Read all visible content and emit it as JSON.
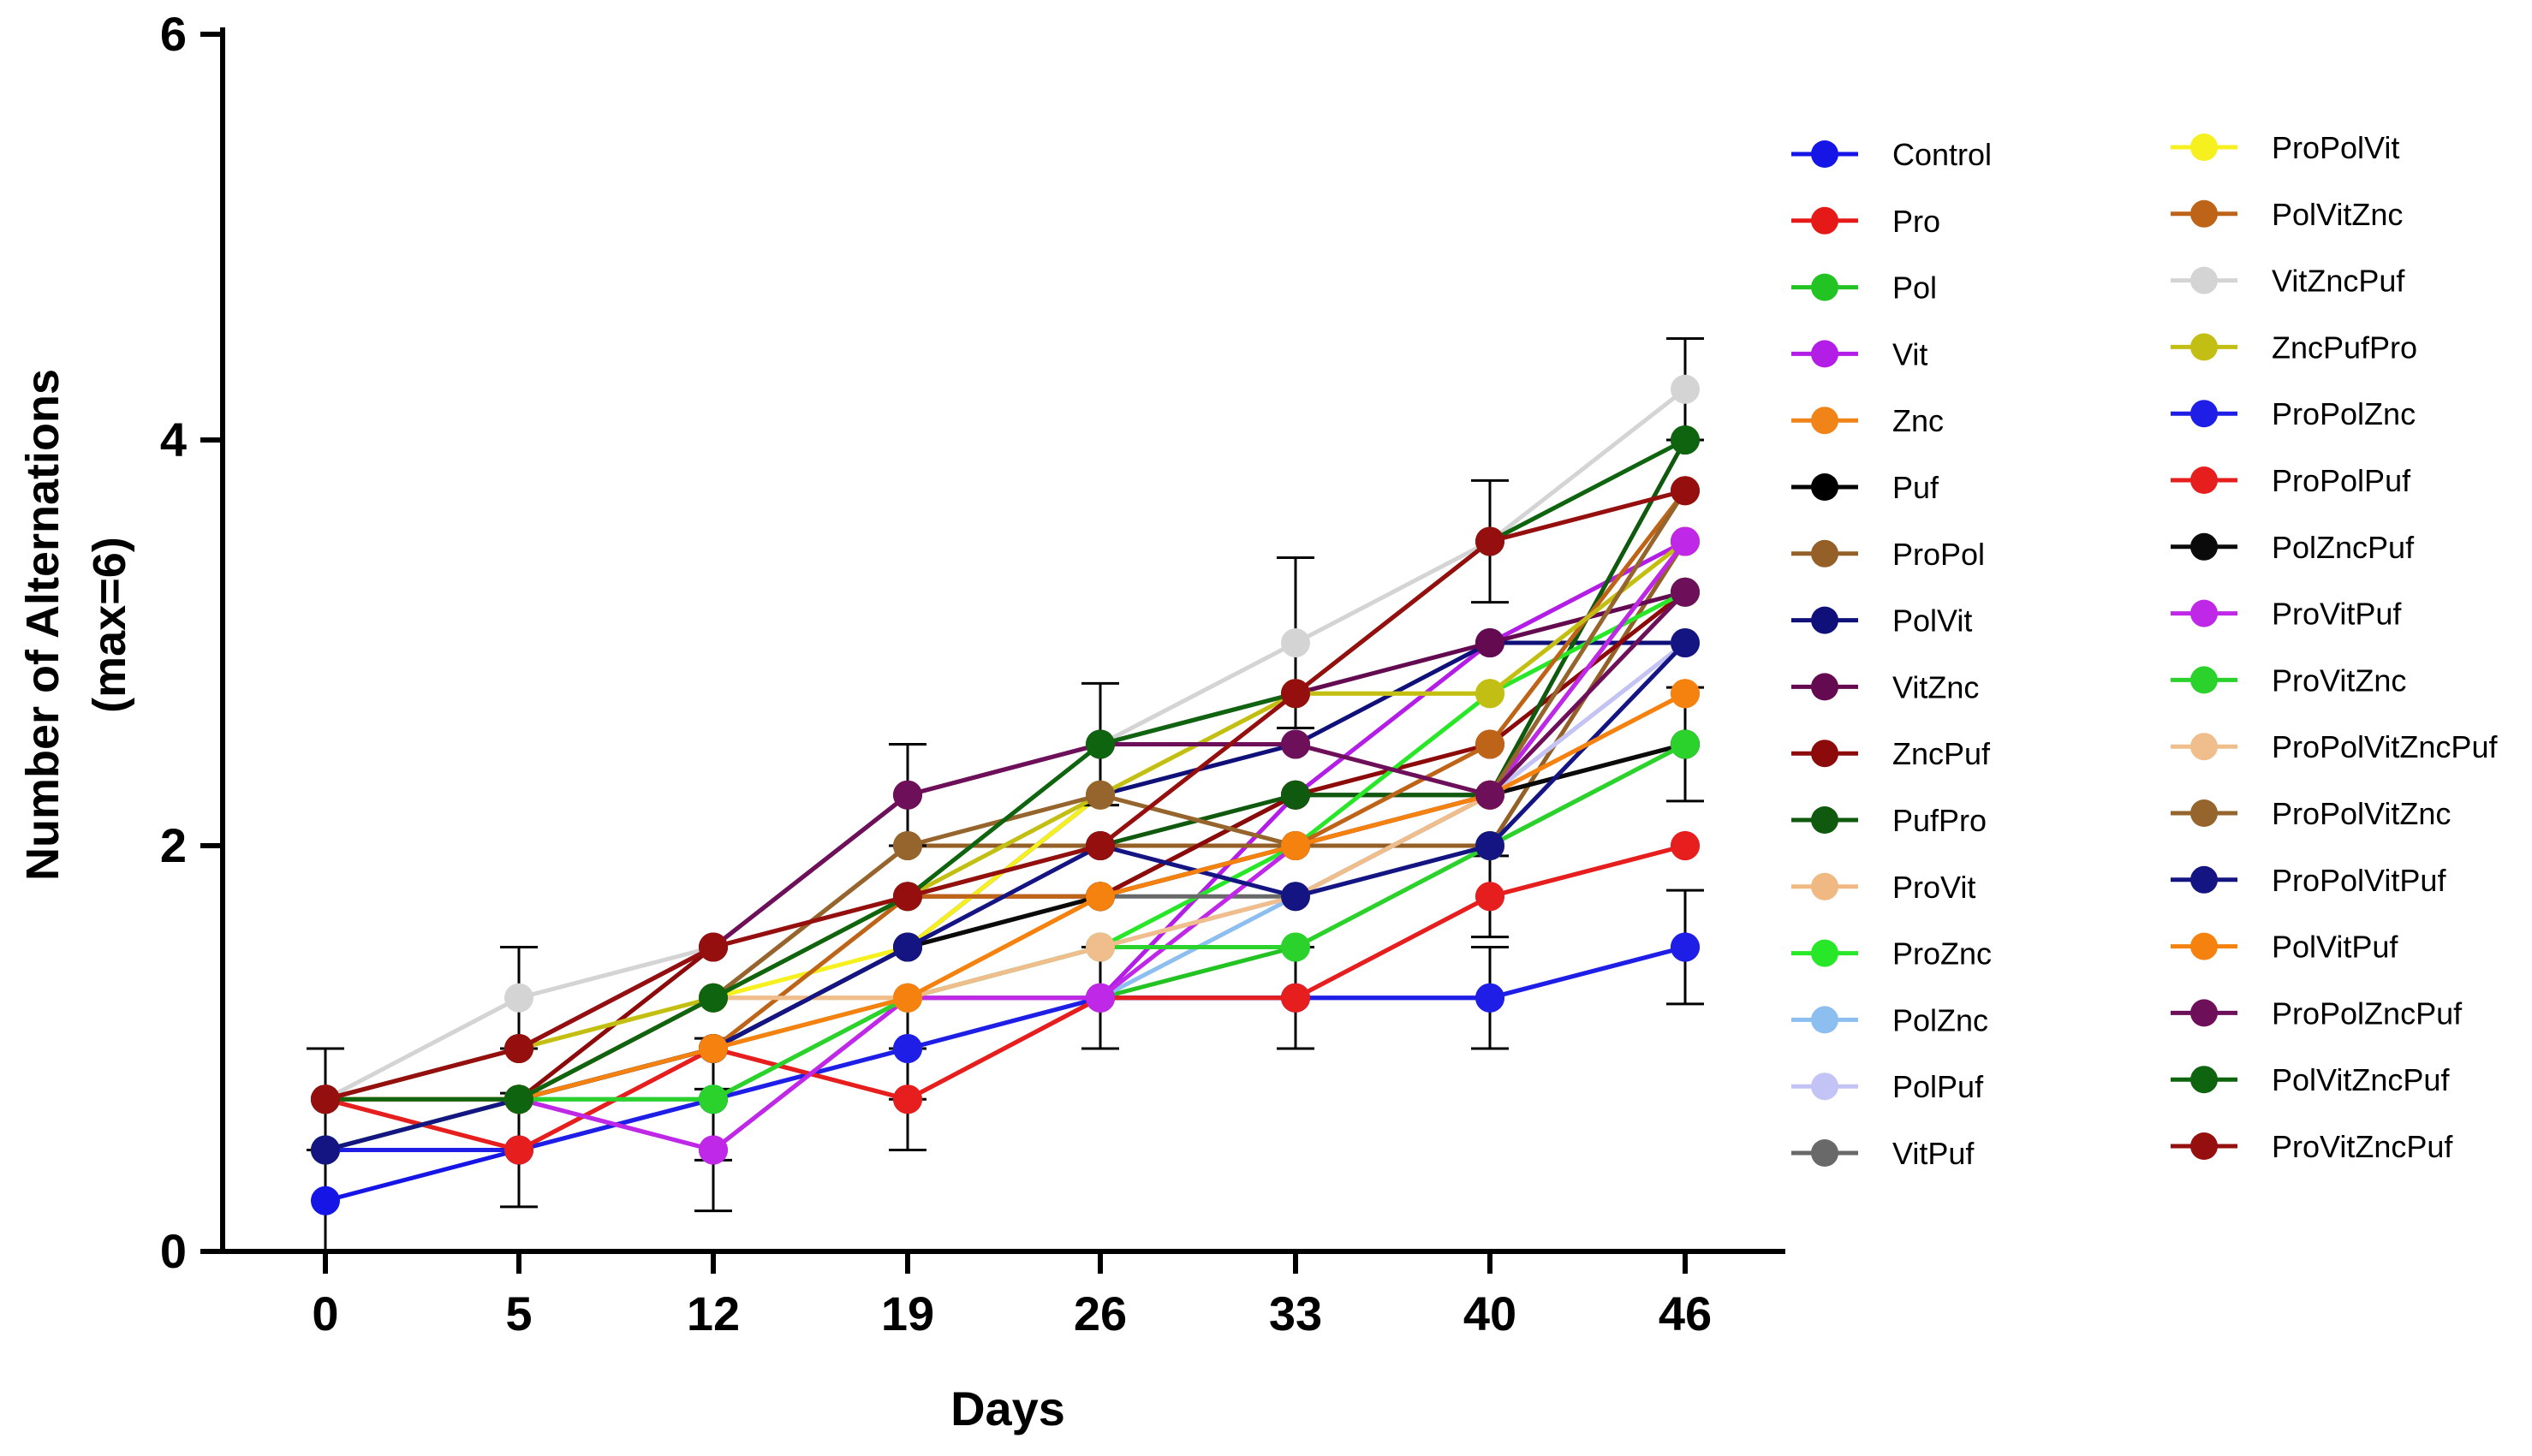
{
  "chart_data": {
    "type": "line",
    "title": "",
    "xlabel": "Days",
    "ylabel_line1": "Number of Alternations",
    "ylabel_line2": "(max=6)",
    "x": [
      0,
      5,
      12,
      19,
      26,
      33,
      40,
      46
    ],
    "x_tick_labels": [
      "0",
      "5",
      "12",
      "19",
      "26",
      "33",
      "40",
      "46"
    ],
    "y_ticks": [
      0,
      2,
      4,
      6
    ],
    "y_tick_labels": [
      "0",
      "2",
      "4",
      "6"
    ],
    "ylim": [
      0,
      6
    ],
    "grid": false,
    "legend_placement": "right",
    "series": [
      {
        "name": "Control",
        "color": "#1515e6",
        "values": [
          0.25,
          0.5,
          0.75,
          1.0,
          1.25,
          1.25,
          1.25,
          1.5
        ],
        "error": [
          0.25,
          0.28,
          0.3,
          0.25,
          0.25,
          0.25,
          0.25,
          0.28
        ]
      },
      {
        "name": "Pro",
        "color": "#e61919",
        "values": [
          0.75,
          0.5,
          1.0,
          0.75,
          1.25,
          1.25,
          1.75,
          2.0
        ],
        "error": [
          0.25,
          0.0,
          0.0,
          0.25,
          0.0,
          0.0,
          0.2,
          0.0
        ]
      },
      {
        "name": "Pol",
        "color": "#22c322",
        "values": [
          0.5,
          0.75,
          0.75,
          1.25,
          1.25,
          1.5,
          2.0,
          2.5
        ],
        "error": [
          0.0,
          0.0,
          0.0,
          0.0,
          0.0,
          0.0,
          0.0,
          0.0
        ]
      },
      {
        "name": "Vit",
        "color": "#b21ee6",
        "values": [
          0.75,
          0.75,
          0.5,
          1.25,
          1.25,
          2.25,
          3.0,
          3.5
        ],
        "error": [
          0.0,
          0.0,
          0.3,
          0.0,
          0.0,
          0.0,
          0.0,
          0.0
        ]
      },
      {
        "name": "Znc",
        "color": "#f08419",
        "values": [
          0.75,
          0.75,
          1.0,
          1.25,
          1.75,
          2.0,
          2.25,
          2.75
        ],
        "error": [
          0.0,
          0.0,
          0.0,
          0.0,
          0.0,
          0.0,
          0.0,
          0.0
        ]
      },
      {
        "name": "Puf",
        "color": "#000000",
        "values": [
          0.75,
          0.75,
          1.0,
          1.5,
          1.75,
          2.25,
          2.25,
          2.5
        ],
        "error": [
          0.0,
          0.0,
          0.0,
          0.0,
          0.0,
          0.0,
          0.0,
          0.28
        ]
      },
      {
        "name": "ProPol",
        "color": "#946027",
        "values": [
          0.75,
          0.75,
          1.25,
          2.0,
          2.0,
          2.0,
          2.0,
          3.5
        ],
        "error": [
          0.0,
          0.0,
          0.0,
          0.0,
          0.0,
          0.0,
          0.0,
          0.0
        ]
      },
      {
        "name": "PolVit",
        "color": "#10107a",
        "values": [
          0.5,
          0.75,
          1.0,
          1.5,
          2.25,
          2.5,
          3.0,
          3.0
        ],
        "error": [
          0.0,
          0.0,
          0.0,
          0.0,
          0.0,
          0.0,
          0.0,
          0.0
        ]
      },
      {
        "name": "VitZnc",
        "color": "#640a50",
        "values": [
          0.75,
          1.0,
          1.5,
          2.25,
          2.5,
          2.75,
          3.0,
          3.25
        ],
        "error": [
          0.0,
          0.0,
          0.0,
          0.25,
          0.0,
          0.0,
          0.0,
          0.0
        ]
      },
      {
        "name": "ZncPuf",
        "color": "#8c0a0a",
        "values": [
          0.75,
          0.75,
          1.5,
          1.75,
          1.75,
          2.25,
          2.5,
          3.25
        ],
        "error": [
          0.0,
          0.0,
          0.0,
          0.0,
          0.0,
          0.0,
          0.0,
          0.0
        ]
      },
      {
        "name": "PufPro",
        "color": "#0f5a0f",
        "values": [
          0.75,
          0.75,
          1.25,
          1.75,
          2.0,
          2.25,
          2.25,
          4.0
        ],
        "error": [
          0.0,
          0.0,
          0.0,
          0.0,
          0.0,
          0.0,
          0.0,
          0.0
        ]
      },
      {
        "name": "ProVit",
        "color": "#f0b882",
        "values": [
          0.75,
          0.75,
          1.25,
          1.25,
          1.5,
          1.75,
          2.25,
          3.0
        ],
        "error": [
          0.0,
          0.0,
          0.0,
          0.0,
          0.0,
          0.0,
          0.0,
          0.0
        ]
      },
      {
        "name": "ProZnc",
        "color": "#28e628",
        "values": [
          0.75,
          0.75,
          1.0,
          1.25,
          1.5,
          2.0,
          2.75,
          3.25
        ],
        "error": [
          0.0,
          0.0,
          0.0,
          0.0,
          0.0,
          0.0,
          0.0,
          0.0
        ]
      },
      {
        "name": "PolZnc",
        "color": "#8cbef0",
        "values": [
          0.75,
          0.75,
          0.75,
          1.0,
          1.25,
          1.75,
          2.0,
          3.0
        ],
        "error": [
          0.0,
          0.0,
          0.0,
          0.0,
          0.0,
          0.0,
          0.0,
          0.0
        ]
      },
      {
        "name": "PolPuf",
        "color": "#c3c3f5",
        "values": [
          0.75,
          0.75,
          1.0,
          1.25,
          1.5,
          1.75,
          2.25,
          3.0
        ],
        "error": [
          0.0,
          0.0,
          0.0,
          0.0,
          0.0,
          0.0,
          0.0,
          0.0
        ]
      },
      {
        "name": "VitPuf",
        "color": "#696969",
        "values": [
          0.75,
          0.75,
          1.0,
          1.5,
          1.75,
          1.75,
          2.25,
          3.5
        ],
        "error": [
          0.0,
          0.0,
          0.0,
          0.0,
          0.0,
          0.0,
          0.0,
          0.0
        ]
      },
      {
        "name": "ProPolVit",
        "color": "#f5f01e",
        "values": [
          0.75,
          1.0,
          1.25,
          1.5,
          2.25,
          2.75,
          2.75,
          3.5
        ],
        "error": [
          0.0,
          0.0,
          0.0,
          0.0,
          0.0,
          0.0,
          0.0,
          0.0
        ]
      },
      {
        "name": "PolVitZnc",
        "color": "#be6419",
        "values": [
          0.75,
          0.75,
          1.0,
          1.75,
          1.75,
          2.0,
          2.5,
          3.75
        ],
        "error": [
          0.0,
          0.0,
          0.0,
          0.0,
          0.0,
          0.0,
          0.0,
          0.0
        ]
      },
      {
        "name": "VitZncPuf",
        "color": "#d4d4d4",
        "values": [
          0.75,
          1.25,
          1.5,
          1.75,
          2.5,
          3.0,
          3.5,
          4.25
        ],
        "error": [
          0.0,
          0.25,
          0.0,
          0.0,
          0.3,
          0.42,
          0.3,
          0.25
        ]
      },
      {
        "name": "ZncPufPro",
        "color": "#c3be14",
        "values": [
          0.75,
          1.0,
          1.25,
          1.75,
          2.25,
          2.75,
          2.75,
          3.5
        ],
        "error": [
          0.0,
          0.0,
          0.0,
          0.0,
          0.0,
          0.0,
          0.0,
          0.0
        ]
      },
      {
        "name": "ProPolZnc",
        "color": "#1e1ee6",
        "values": [
          0.5,
          0.5,
          0.75,
          1.0,
          1.25,
          1.25,
          1.25,
          1.5
        ],
        "error": [
          0.0,
          0.0,
          0.0,
          0.0,
          0.0,
          0.0,
          0.0,
          0.0
        ]
      },
      {
        "name": "ProPolPuf",
        "color": "#e61e1e",
        "values": [
          0.75,
          0.5,
          1.0,
          0.75,
          1.25,
          1.25,
          1.75,
          2.0
        ],
        "error": [
          0.0,
          0.0,
          0.0,
          0.0,
          0.0,
          0.0,
          0.0,
          0.0
        ]
      },
      {
        "name": "PolZncPuf",
        "color": "#0a0a0a",
        "values": [
          0.75,
          0.75,
          1.0,
          1.5,
          1.75,
          2.0,
          2.25,
          2.5
        ],
        "error": [
          0.0,
          0.0,
          0.0,
          0.0,
          0.0,
          0.0,
          0.0,
          0.0
        ]
      },
      {
        "name": "ProVitPuf",
        "color": "#be28e6",
        "values": [
          0.75,
          0.75,
          0.5,
          1.25,
          1.25,
          2.0,
          2.25,
          3.5
        ],
        "error": [
          0.0,
          0.0,
          0.0,
          0.0,
          0.0,
          0.0,
          0.0,
          0.0
        ]
      },
      {
        "name": "ProVitZnc",
        "color": "#2cd22c",
        "values": [
          0.5,
          0.75,
          0.75,
          1.25,
          1.5,
          1.5,
          2.0,
          2.5
        ],
        "error": [
          0.0,
          0.0,
          0.0,
          0.0,
          0.0,
          0.0,
          0.0,
          0.0
        ]
      },
      {
        "name": "ProPolVitZncPuf",
        "color": "#f0be8c",
        "values": [
          0.75,
          0.75,
          1.25,
          1.25,
          1.5,
          1.75,
          2.25,
          2.75
        ],
        "error": [
          0.0,
          0.0,
          0.0,
          0.0,
          0.0,
          0.0,
          0.0,
          0.0
        ]
      },
      {
        "name": "ProPolVitZnc",
        "color": "#96642d",
        "values": [
          0.75,
          0.75,
          1.25,
          2.0,
          2.25,
          2.0,
          2.25,
          3.75
        ],
        "error": [
          0.0,
          0.0,
          0.0,
          0.0,
          0.0,
          0.0,
          0.0,
          0.0
        ]
      },
      {
        "name": "ProPolVitPuf",
        "color": "#141482",
        "values": [
          0.5,
          0.75,
          1.0,
          1.5,
          2.0,
          1.75,
          2.0,
          3.0
        ],
        "error": [
          0.0,
          0.0,
          0.0,
          0.0,
          0.0,
          0.0,
          0.0,
          0.0
        ]
      },
      {
        "name": "PolVitPuf",
        "color": "#f5820f",
        "values": [
          0.75,
          0.75,
          1.0,
          1.25,
          1.75,
          2.0,
          2.25,
          2.75
        ],
        "error": [
          0.0,
          0.0,
          0.0,
          0.0,
          0.0,
          0.0,
          0.0,
          0.0
        ]
      },
      {
        "name": "ProPolZncPuf",
        "color": "#6e0f5a",
        "values": [
          0.75,
          1.0,
          1.5,
          2.25,
          2.5,
          2.5,
          2.25,
          3.25
        ],
        "error": [
          0.0,
          0.0,
          0.0,
          0.0,
          0.0,
          0.0,
          0.0,
          0.0
        ]
      },
      {
        "name": "PolVitZncPuf",
        "color": "#0f640f",
        "values": [
          0.75,
          0.75,
          1.25,
          1.75,
          2.5,
          2.75,
          3.5,
          4.0
        ],
        "error": [
          0.0,
          0.0,
          0.0,
          0.0,
          0.0,
          0.0,
          0.0,
          0.0
        ]
      },
      {
        "name": "ProVitZncPuf",
        "color": "#960f0f",
        "values": [
          0.75,
          1.0,
          1.5,
          1.75,
          2.0,
          2.75,
          3.5,
          3.75
        ],
        "error": [
          0.0,
          0.0,
          0.0,
          0.0,
          0.0,
          0.0,
          0.0,
          0.0
        ]
      }
    ]
  }
}
